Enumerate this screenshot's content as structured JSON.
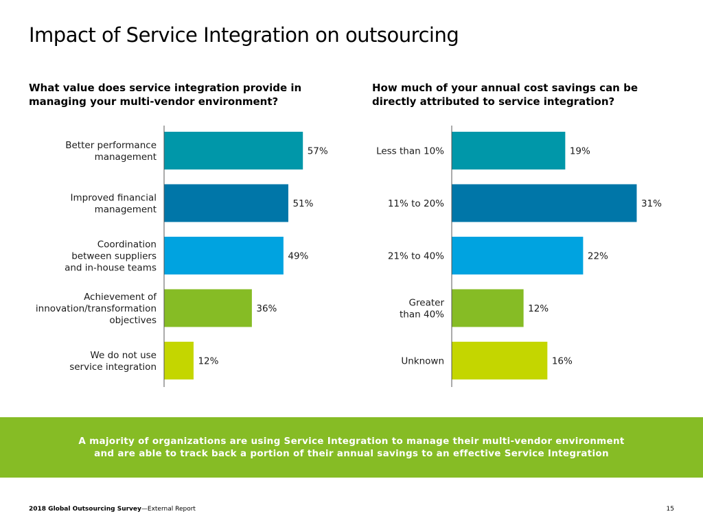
{
  "title": "Impact of Service Integration on outsourcing",
  "chart_data": [
    {
      "type": "bar",
      "orientation": "horizontal",
      "title": "What value does service integration provide in managing your multi-vendor environment?",
      "categories": [
        [
          "Better performance",
          "management"
        ],
        [
          "Improved financial",
          "management"
        ],
        [
          "Coordination",
          "between suppliers",
          "and in-house teams"
        ],
        [
          "Achievement of",
          "innovation/transformation",
          "objectives"
        ],
        [
          "We do not use",
          "service integration"
        ]
      ],
      "values": [
        57,
        51,
        49,
        36,
        12
      ],
      "value_labels": [
        "57%",
        "51%",
        "49%",
        "36%",
        "12%"
      ],
      "colors": [
        "#0097a9",
        "#0076a8",
        "#00a3e0",
        "#86bc25",
        "#c4d600"
      ],
      "xlim": [
        0,
        65
      ],
      "grid": false,
      "legend": "none"
    },
    {
      "type": "bar",
      "orientation": "horizontal",
      "title": "How much of your annual cost savings can be directly attributed to service integration?",
      "categories": [
        [
          "Less than 10%"
        ],
        [
          "11% to 20%"
        ],
        [
          "21% to 40%"
        ],
        [
          "Greater",
          "than 40%"
        ],
        [
          "Unknown"
        ]
      ],
      "values": [
        19,
        31,
        22,
        12,
        16
      ],
      "value_labels": [
        "19%",
        "31%",
        "22%",
        "12%",
        "16%"
      ],
      "colors": [
        "#0097a9",
        "#0076a8",
        "#00a3e0",
        "#86bc25",
        "#c4d600"
      ],
      "xlim": [
        0,
        35.5
      ],
      "grid": false,
      "legend": "none"
    }
  ],
  "takeaway": {
    "line1": "A majority of organizations are using Service Integration to manage their multi-vendor environment",
    "line2": "and are able to track back a portion of their annual savings to an effective Service Integration"
  },
  "footer": {
    "report_name": "2018 Global Outsourcing Survey",
    "report_suffix": "—External Report",
    "page": "15"
  }
}
